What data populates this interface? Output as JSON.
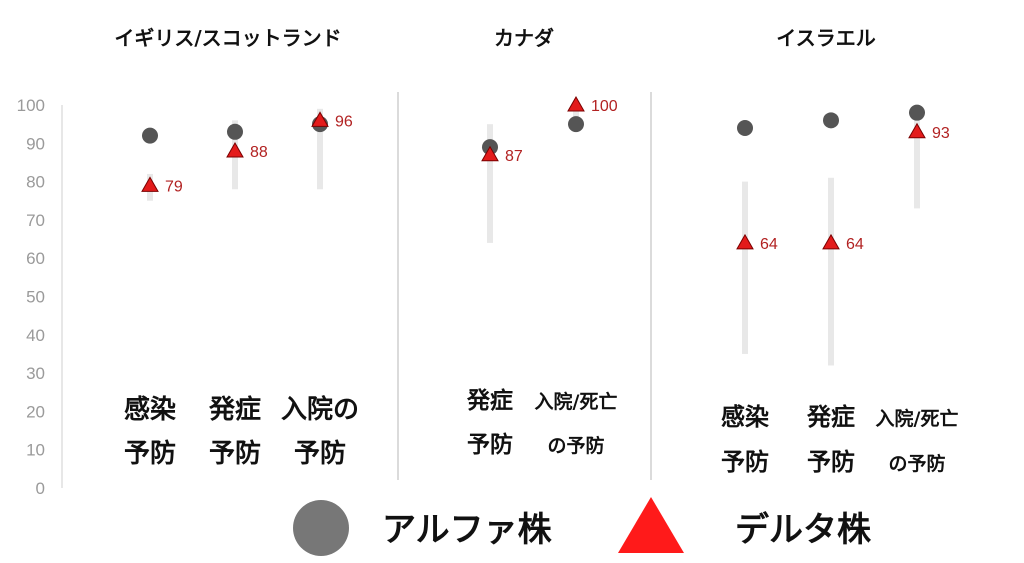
{
  "chart_data": {
    "type": "scatter",
    "ylim": [
      0,
      100
    ],
    "yticks": [
      0,
      10,
      20,
      30,
      40,
      50,
      60,
      70,
      80,
      90,
      100
    ],
    "legend": {
      "placement": "bottom",
      "items": [
        {
          "name": "アルファ株",
          "marker": "circle",
          "color": "#777777"
        },
        {
          "name": "デルタ株",
          "marker": "triangle",
          "color": "#ff1a1a"
        }
      ]
    },
    "colors": {
      "alpha": "#555555",
      "delta": "#e31b1b",
      "delta_label": "#b22222",
      "ci": "#e8e8e8",
      "divider": "#cfcfcf"
    },
    "panels": [
      {
        "title": "イギリス/スコットランド",
        "categories": [
          {
            "label_lines": [
              "感染",
              "予防"
            ],
            "alpha": 92,
            "delta": 79,
            "delta_label": "79",
            "ci": [
              75,
              82
            ]
          },
          {
            "label_lines": [
              "発症",
              "予防"
            ],
            "alpha": 93,
            "delta": 88,
            "delta_label": "88",
            "ci": [
              78,
              96
            ]
          },
          {
            "label_lines": [
              "入院の",
              "予防"
            ],
            "alpha": 95,
            "delta": 96,
            "delta_label": "96",
            "ci": [
              78,
              99
            ]
          }
        ]
      },
      {
        "title": "カナダ",
        "categories": [
          {
            "label_lines": [
              "発症",
              "予防"
            ],
            "alpha": 89,
            "delta": 87,
            "delta_label": "87",
            "ci": [
              64,
              95
            ]
          },
          {
            "label_lines": [
              "入院/死亡",
              "の予防"
            ],
            "alpha": 95,
            "delta": 100,
            "delta_label": "100",
            "ci": [
              93,
              100
            ]
          }
        ]
      },
      {
        "title": "イスラエル",
        "categories": [
          {
            "label_lines": [
              "感染",
              "予防"
            ],
            "alpha": 94,
            "delta": 64,
            "delta_label": "64",
            "ci": [
              35,
              80
            ]
          },
          {
            "label_lines": [
              "発症",
              "予防"
            ],
            "alpha": 96,
            "delta": 64,
            "delta_label": "64",
            "ci": [
              32,
              81
            ]
          },
          {
            "label_lines": [
              "入院/死亡",
              "の予防"
            ],
            "alpha": 98,
            "delta": 93,
            "delta_label": "93",
            "ci": [
              73,
              98
            ]
          }
        ]
      }
    ]
  }
}
